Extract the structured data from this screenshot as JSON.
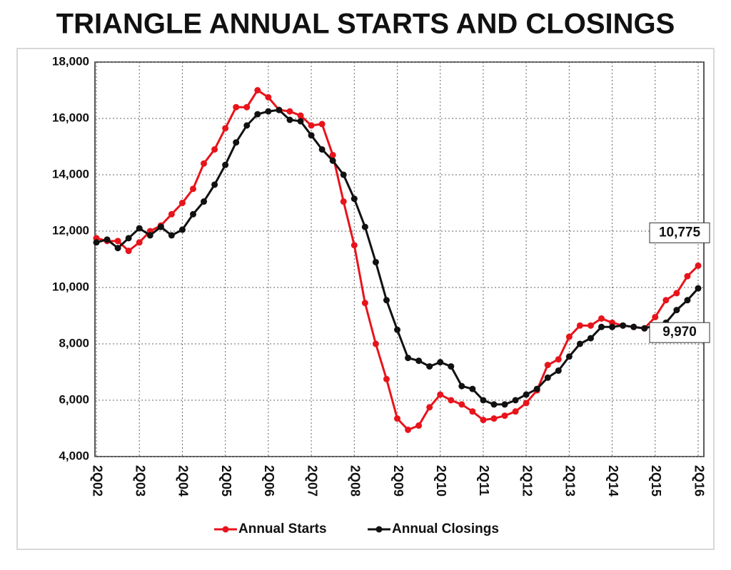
{
  "chart_data": {
    "type": "line",
    "title": "TRIANGLE ANNUAL STARTS AND CLOSINGS",
    "categories": [
      "2Q02",
      null,
      null,
      null,
      "2Q03",
      null,
      null,
      null,
      "2Q04",
      null,
      null,
      null,
      "2Q05",
      null,
      null,
      null,
      "2Q06",
      null,
      null,
      null,
      "2Q07",
      null,
      null,
      null,
      "2Q08",
      null,
      null,
      null,
      "2Q09",
      null,
      null,
      null,
      "2Q10",
      null,
      null,
      null,
      "2Q11",
      null,
      null,
      null,
      "2Q12",
      null,
      null,
      null,
      "2Q13",
      null,
      null,
      null,
      "2Q14",
      null,
      null,
      null,
      "2Q15",
      null,
      null,
      null,
      "2Q16"
    ],
    "series": [
      {
        "name": "Annual Starts",
        "color": "#e8141b",
        "values": [
          11750,
          11650,
          11650,
          11300,
          11600,
          12000,
          12200,
          12600,
          13000,
          13500,
          14400,
          14900,
          15650,
          16400,
          16400,
          17000,
          16750,
          16300,
          16250,
          16100,
          15750,
          15800,
          14700,
          13050,
          11500,
          9450,
          8000,
          6750,
          5350,
          4950,
          5100,
          5750,
          6200,
          6000,
          5850,
          5600,
          5300,
          5350,
          5450,
          5600,
          5900,
          6350,
          7250,
          7450,
          8250,
          8650,
          8650,
          8900,
          8750,
          8650,
          8600,
          8550,
          8950,
          9550,
          9800,
          10400,
          10775
        ],
        "value_labels": [
          null,
          null,
          null,
          null,
          null,
          null,
          null,
          null,
          null,
          null,
          null,
          null,
          null,
          null,
          null,
          null,
          null,
          null,
          null,
          null,
          null,
          null,
          null,
          null,
          null,
          null,
          null,
          null,
          null,
          null,
          null,
          null,
          null,
          null,
          null,
          null,
          null,
          null,
          null,
          null,
          null,
          null,
          null,
          null,
          null,
          null,
          null,
          null,
          null,
          null,
          null,
          null,
          null,
          null,
          null,
          null,
          "10,775"
        ]
      },
      {
        "name": "Annual Closings",
        "color": "#111111",
        "values": [
          11600,
          11700,
          11400,
          11750,
          12100,
          11850,
          12150,
          11850,
          12050,
          12600,
          13050,
          13650,
          14350,
          15150,
          15750,
          16150,
          16250,
          16300,
          15950,
          15900,
          15400,
          14900,
          14500,
          14000,
          13150,
          12150,
          10900,
          9550,
          8500,
          7500,
          7400,
          7200,
          7350,
          7200,
          6500,
          6400,
          6000,
          5850,
          5850,
          6000,
          6200,
          6400,
          6800,
          7050,
          7550,
          8000,
          8200,
          8600,
          8600,
          8650,
          8600,
          8550,
          8650,
          8750,
          9200,
          9550,
          9970
        ],
        "value_labels": [
          null,
          null,
          null,
          null,
          null,
          null,
          null,
          null,
          null,
          null,
          null,
          null,
          null,
          null,
          null,
          null,
          null,
          null,
          null,
          null,
          null,
          null,
          null,
          null,
          null,
          null,
          null,
          null,
          null,
          null,
          null,
          null,
          null,
          null,
          null,
          null,
          null,
          null,
          null,
          null,
          null,
          null,
          null,
          null,
          null,
          null,
          null,
          null,
          null,
          null,
          null,
          null,
          null,
          null,
          null,
          null,
          "9,970"
        ]
      }
    ],
    "ylim": [
      4000,
      18000
    ],
    "yticks": [
      {
        "value": 4000,
        "label": "4,000"
      },
      {
        "value": 6000,
        "label": "6,000"
      },
      {
        "value": 8000,
        "label": "8,000"
      },
      {
        "value": 10000,
        "label": "10,000"
      },
      {
        "value": 12000,
        "label": "12,000"
      },
      {
        "value": 14000,
        "label": "14,000"
      },
      {
        "value": 16000,
        "label": "16,000"
      },
      {
        "value": 18000,
        "label": "18,000"
      }
    ],
    "grid": true,
    "legend": "bottom"
  }
}
